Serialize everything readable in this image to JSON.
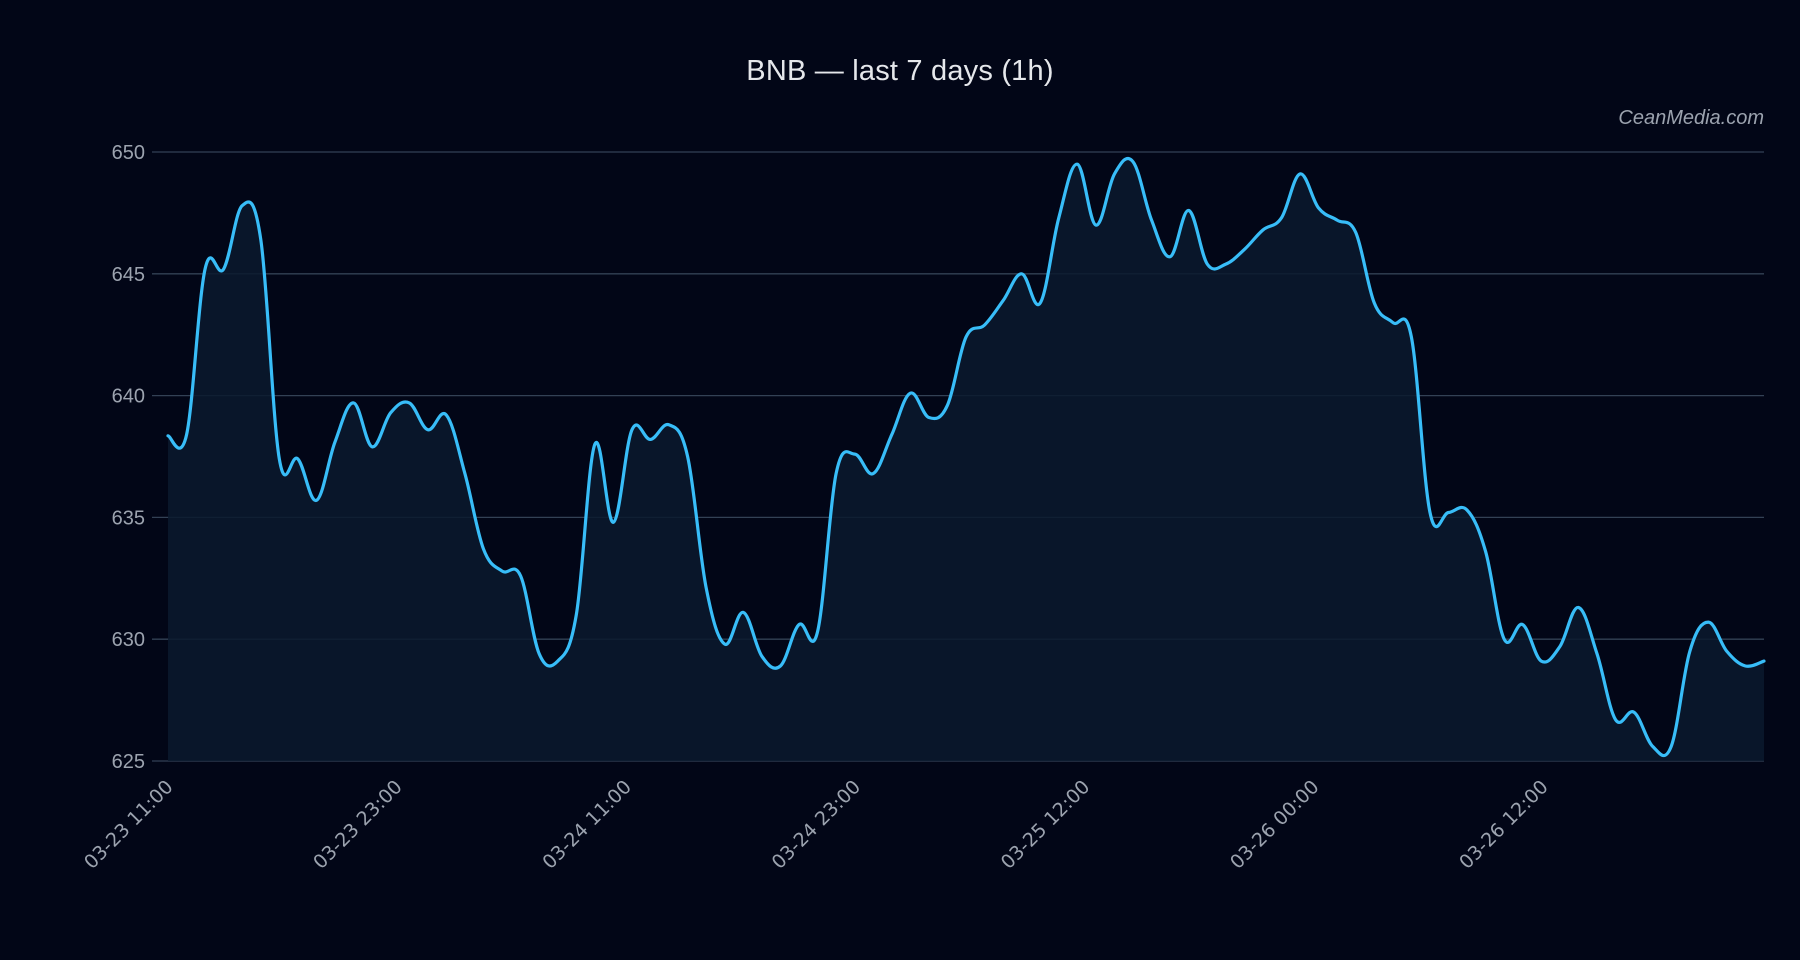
{
  "title": "BNB — last 7 days (1h)",
  "watermark": "CeanMedia.com",
  "colors": {
    "background": "#020617",
    "line": "#38bdf8",
    "area": "#0b1a2e",
    "grid": "#334155",
    "text": "#9ca3af",
    "title": "#e5e7eb"
  },
  "chart_data": {
    "type": "area",
    "title": "BNB — last 7 days (1h)",
    "xlabel": "",
    "ylabel": "",
    "ylim": [
      625,
      650
    ],
    "yticks": [
      625,
      630,
      635,
      640,
      645,
      650
    ],
    "grid": true,
    "legend": null,
    "x_tick_labels": [
      "03-23 11:00",
      "03-23 23:00",
      "03-24 11:00",
      "03-24 23:00",
      "03-25 12:00",
      "03-26 00:00",
      "03-26 12:00"
    ],
    "x_tick_indices": [
      0,
      12,
      24,
      36,
      48,
      60,
      72
    ],
    "series": [
      {
        "name": "BNB",
        "values": [
          638.35,
          638.4,
          645.2,
          645.2,
          647.8,
          646.4,
          637.4,
          637.4,
          635.7,
          638.1,
          639.7,
          637.9,
          639.3,
          639.7,
          638.6,
          639.2,
          636.8,
          633.7,
          632.8,
          632.6,
          629.4,
          629.1,
          631.0,
          638.0,
          634.8,
          638.6,
          638.2,
          638.8,
          637.5,
          632.1,
          629.8,
          631.1,
          629.3,
          628.9,
          630.6,
          630.3,
          636.8,
          637.6,
          636.8,
          638.4,
          640.1,
          639.1,
          639.6,
          642.4,
          642.9,
          643.9,
          645.0,
          643.8,
          647.3,
          649.5,
          647.0,
          649.1,
          649.6,
          647.2,
          645.7,
          647.6,
          645.4,
          645.4,
          646.0,
          646.8,
          647.3,
          649.1,
          647.7,
          647.2,
          646.7,
          643.8,
          643.0,
          642.4,
          635.2,
          635.2,
          635.3,
          633.6,
          630.0,
          630.6,
          629.1,
          629.7,
          631.3,
          629.4,
          626.7,
          627.0,
          625.6,
          625.6,
          629.5,
          630.7,
          629.5,
          628.9,
          629.1
        ]
      }
    ]
  }
}
